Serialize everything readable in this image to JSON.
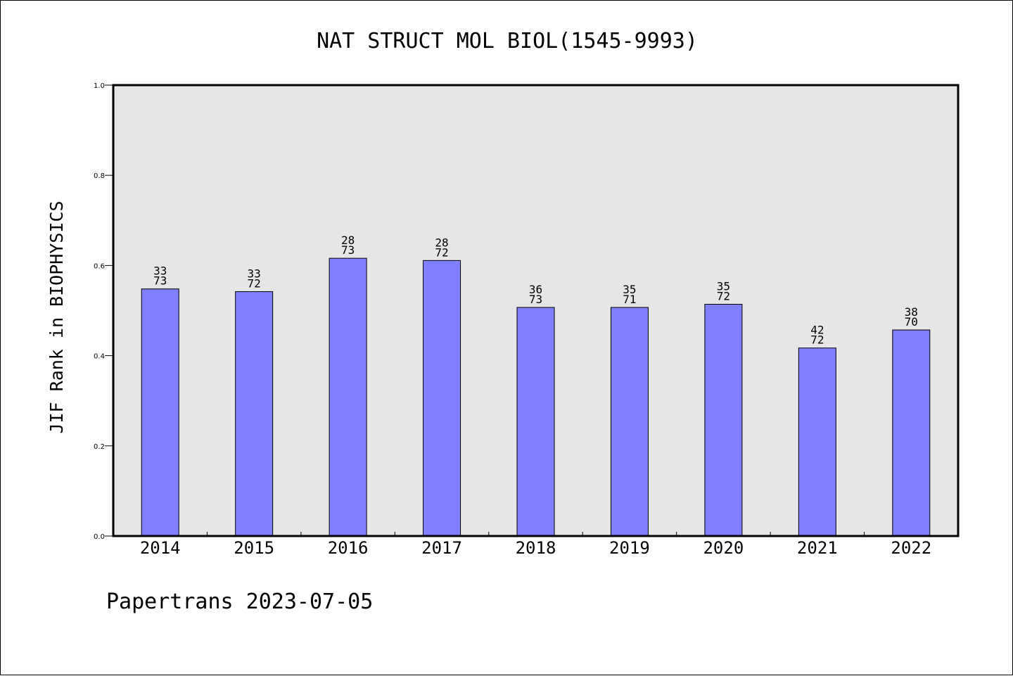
{
  "chart_data": {
    "type": "bar",
    "title": "NAT STRUCT MOL BIOL(1545-9993)",
    "ylabel": "JIF Rank in BIOPHYSICS",
    "xlabel": "",
    "ylim": [
      0,
      1.0
    ],
    "yticks": [
      "0.0",
      "0.2",
      "0.4",
      "0.6",
      "0.8",
      "1.0"
    ],
    "categories": [
      "2014",
      "2015",
      "2016",
      "2017",
      "2018",
      "2019",
      "2020",
      "2021",
      "2022"
    ],
    "values": [
      0.548,
      0.542,
      0.616,
      0.611,
      0.507,
      0.507,
      0.514,
      0.417,
      0.457
    ],
    "rank": [
      "33",
      "33",
      "28",
      "28",
      "36",
      "35",
      "35",
      "42",
      "38"
    ],
    "total": [
      "73",
      "72",
      "73",
      "72",
      "73",
      "71",
      "72",
      "72",
      "70"
    ],
    "colors": {
      "bar": "#8080ff",
      "plot_bg": "#e6e6e6"
    },
    "grid": false
  },
  "footer": "Papertrans 2023-07-05"
}
